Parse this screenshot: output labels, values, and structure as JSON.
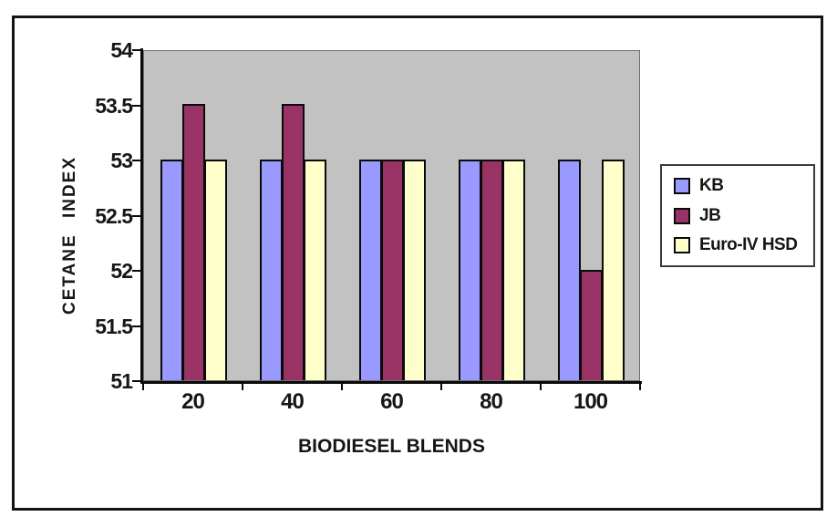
{
  "chart_data": {
    "type": "bar",
    "categories": [
      "20",
      "40",
      "60",
      "80",
      "100"
    ],
    "series": [
      {
        "name": "KB",
        "color": "#9999ff",
        "values": [
          53,
          53,
          53,
          53,
          53
        ]
      },
      {
        "name": "JB",
        "color": "#993366",
        "values": [
          53.5,
          53.5,
          53,
          53,
          52
        ]
      },
      {
        "name": "Euro-IV HSD",
        "color": "#ffffcc",
        "values": [
          53,
          53,
          53,
          53,
          53
        ]
      }
    ],
    "title": "",
    "xlabel": "BIODIESEL BLENDS",
    "ylabel": "CETANE  INDEX",
    "ylim": [
      51,
      54
    ],
    "ytick_step": 0.5,
    "grid": false,
    "legend_position": "right",
    "plot_bg": "#c2c2c2",
    "axis_color": "#0a0a0a"
  }
}
